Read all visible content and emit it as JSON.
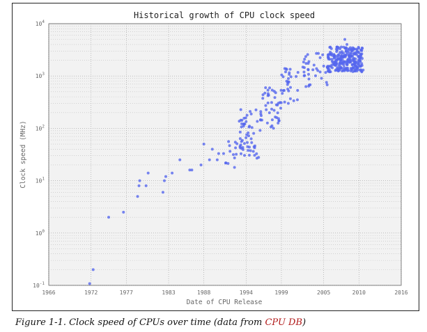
{
  "caption": {
    "prefix": "Figure 1-1. Clock speed of CPUs over time (data from ",
    "link_text": "CPU DB",
    "suffix": ")",
    "link_color": "#b11a1a"
  },
  "chart_data": {
    "type": "scatter",
    "title": "Historical growth of CPU clock speed",
    "xlabel": "Date of CPU Release",
    "ylabel": "Clock speed (MHz)",
    "xscale": "linear",
    "yscale": "log",
    "xlim": [
      1966,
      2016
    ],
    "ylim": [
      0.1,
      10000
    ],
    "x_ticks": [
      1966,
      1972,
      1977,
      1983,
      1988,
      1994,
      1999,
      2005,
      2010,
      2016
    ],
    "y_ticks": [
      {
        "value": 0.1,
        "base": "10",
        "exp": "-1"
      },
      {
        "value": 1,
        "base": "10",
        "exp": "0"
      },
      {
        "value": 10,
        "base": "10",
        "exp": "1"
      },
      {
        "value": 100,
        "base": "10",
        "exp": "2"
      },
      {
        "value": 1000,
        "base": "10",
        "exp": "3"
      },
      {
        "value": 10000,
        "base": "10",
        "exp": "4"
      }
    ],
    "grid": true,
    "point_color": "#5566ee",
    "background_color": "#f2f2f2",
    "clusters": [
      {
        "x_range": [
          2005.5,
          2010.5
        ],
        "y_range": [
          1200,
          3600
        ],
        "count": 260,
        "seed": 11
      },
      {
        "x_range": [
          2002,
          2005.5
        ],
        "y_range": [
          600,
          3000
        ],
        "count": 35,
        "seed": 23
      },
      {
        "x_range": [
          1999,
          2002
        ],
        "y_range": [
          300,
          1400
        ],
        "count": 30,
        "seed": 37
      },
      {
        "x_range": [
          1996,
          1999
        ],
        "y_range": [
          100,
          600
        ],
        "count": 45,
        "seed": 41
      },
      {
        "x_range": [
          1993,
          1996
        ],
        "y_range": [
          25,
          250
        ],
        "count": 55,
        "seed": 53
      },
      {
        "x_range": [
          1991,
          1993.5
        ],
        "y_range": [
          16,
          60
        ],
        "count": 15,
        "seed": 61
      }
    ],
    "points": [
      {
        "x": 1971.8,
        "y": 0.108
      },
      {
        "x": 1972.3,
        "y": 0.2
      },
      {
        "x": 1974.5,
        "y": 2
      },
      {
        "x": 1976.6,
        "y": 2.5
      },
      {
        "x": 1978.6,
        "y": 5
      },
      {
        "x": 1978.8,
        "y": 8
      },
      {
        "x": 1978.9,
        "y": 10
      },
      {
        "x": 1979.8,
        "y": 8
      },
      {
        "x": 1980.1,
        "y": 14
      },
      {
        "x": 1982.2,
        "y": 6
      },
      {
        "x": 1982.4,
        "y": 10
      },
      {
        "x": 1982.6,
        "y": 12
      },
      {
        "x": 1983.5,
        "y": 14
      },
      {
        "x": 1984.6,
        "y": 25
      },
      {
        "x": 1986.0,
        "y": 16
      },
      {
        "x": 1986.3,
        "y": 16
      },
      {
        "x": 1987.6,
        "y": 20
      },
      {
        "x": 1988.0,
        "y": 50
      },
      {
        "x": 1988.8,
        "y": 25
      },
      {
        "x": 1989.2,
        "y": 40
      },
      {
        "x": 1989.9,
        "y": 25
      },
      {
        "x": 1990.1,
        "y": 33
      },
      {
        "x": 1990.8,
        "y": 33
      },
      {
        "x": 2008.0,
        "y": 5000
      },
      {
        "x": 2008.3,
        "y": 4000
      },
      {
        "x": 2010.4,
        "y": 1200
      },
      {
        "x": 2010.6,
        "y": 1300
      }
    ]
  }
}
